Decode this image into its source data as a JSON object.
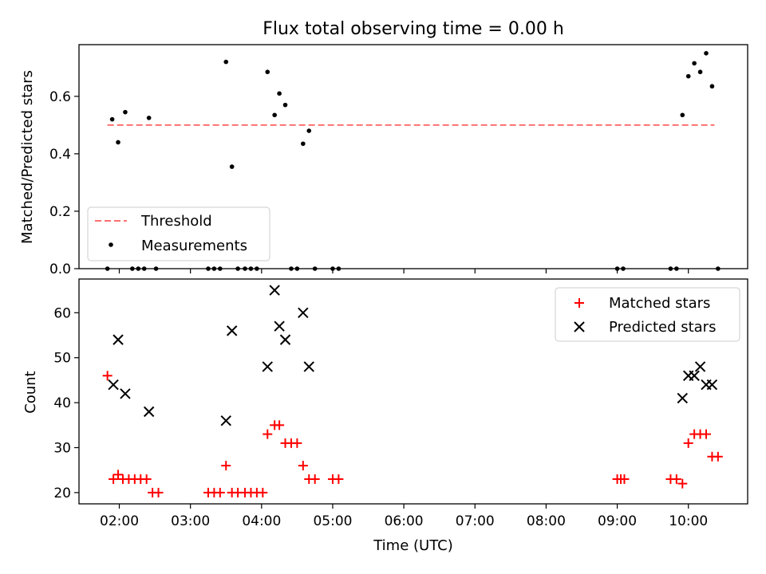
{
  "figure": {
    "title": "Flux total observing time = 0.00 h"
  },
  "chart_data": [
    {
      "type": "scatter",
      "panel": "top",
      "ylabel": "Matched/Predicted stars",
      "xlim": [
        "01:26",
        "10:50"
      ],
      "ylim": [
        0,
        0.78
      ],
      "yticks": [
        0.0,
        0.2,
        0.4,
        0.6
      ],
      "ytick_labels": [
        "0.0",
        "0.2",
        "0.4",
        "0.6"
      ],
      "legend_position": "lower-left",
      "threshold": {
        "name": "Threshold",
        "value": 0.5,
        "x_range": [
          "01:50",
          "10:22"
        ],
        "color": "#ff7070",
        "style": "dashed"
      },
      "series": [
        {
          "name": "Measurements",
          "color": "#000000",
          "points": [
            [
              "01:50",
              0.0
            ],
            [
              "01:54",
              0.52
            ],
            [
              "01:59",
              0.44
            ],
            [
              "02:05",
              0.545
            ],
            [
              "02:11",
              0.0
            ],
            [
              "02:16",
              0.0
            ],
            [
              "02:21",
              0.0
            ],
            [
              "02:25",
              0.525
            ],
            [
              "02:31",
              0.0
            ],
            [
              "03:15",
              0.0
            ],
            [
              "03:20",
              0.0
            ],
            [
              "03:25",
              0.0
            ],
            [
              "03:30",
              0.72
            ],
            [
              "03:35",
              0.355
            ],
            [
              "03:40",
              0.0
            ],
            [
              "03:46",
              0.0
            ],
            [
              "03:51",
              0.0
            ],
            [
              "03:56",
              0.0
            ],
            [
              "04:05",
              0.685
            ],
            [
              "04:11",
              0.535
            ],
            [
              "04:15",
              0.61
            ],
            [
              "04:20",
              0.57
            ],
            [
              "04:25",
              0.0
            ],
            [
              "04:30",
              0.0
            ],
            [
              "04:35",
              0.435
            ],
            [
              "04:40",
              0.48
            ],
            [
              "04:45",
              0.0
            ],
            [
              "05:00",
              0.0
            ],
            [
              "05:05",
              0.0
            ],
            [
              "09:00",
              0.0
            ],
            [
              "09:05",
              0.0
            ],
            [
              "09:45",
              0.0
            ],
            [
              "09:50",
              0.0
            ],
            [
              "09:55",
              0.535
            ],
            [
              "10:00",
              0.67
            ],
            [
              "10:05",
              0.715
            ],
            [
              "10:10",
              0.685
            ],
            [
              "10:15",
              0.75
            ],
            [
              "10:20",
              0.635
            ],
            [
              "10:25",
              0.0
            ]
          ]
        }
      ]
    },
    {
      "type": "scatter",
      "panel": "bottom",
      "xlabel": "Time (UTC)",
      "ylabel": "Count",
      "xlim": [
        "01:26",
        "10:50"
      ],
      "ylim": [
        17.5,
        67.5
      ],
      "xticks": [
        "02:00",
        "03:00",
        "04:00",
        "05:00",
        "06:00",
        "07:00",
        "08:00",
        "09:00",
        "10:00"
      ],
      "yticks": [
        20,
        30,
        40,
        50,
        60
      ],
      "ytick_labels": [
        "20",
        "30",
        "40",
        "50",
        "60"
      ],
      "legend_position": "upper-right",
      "series": [
        {
          "name": "Matched stars",
          "marker": "+",
          "color": "#ff0000",
          "points": [
            [
              "01:50",
              46
            ],
            [
              "01:55",
              23
            ],
            [
              "01:59",
              24
            ],
            [
              "02:03",
              23
            ],
            [
              "02:08",
              23
            ],
            [
              "02:13",
              23
            ],
            [
              "02:18",
              23
            ],
            [
              "02:23",
              23
            ],
            [
              "02:28",
              20
            ],
            [
              "02:33",
              20
            ],
            [
              "03:15",
              20
            ],
            [
              "03:20",
              20
            ],
            [
              "03:25",
              20
            ],
            [
              "03:30",
              26
            ],
            [
              "03:35",
              20
            ],
            [
              "03:40",
              20
            ],
            [
              "03:46",
              20
            ],
            [
              "03:51",
              20
            ],
            [
              "03:56",
              20
            ],
            [
              "04:01",
              20
            ],
            [
              "04:05",
              33
            ],
            [
              "04:11",
              35
            ],
            [
              "04:15",
              35
            ],
            [
              "04:20",
              31
            ],
            [
              "04:25",
              31
            ],
            [
              "04:30",
              31
            ],
            [
              "04:35",
              26
            ],
            [
              "04:40",
              23
            ],
            [
              "04:45",
              23
            ],
            [
              "05:00",
              23
            ],
            [
              "05:05",
              23
            ],
            [
              "09:00",
              23
            ],
            [
              "09:03",
              23
            ],
            [
              "09:06",
              23
            ],
            [
              "09:45",
              23
            ],
            [
              "09:50",
              23
            ],
            [
              "09:55",
              22
            ],
            [
              "10:00",
              31
            ],
            [
              "10:05",
              33
            ],
            [
              "10:10",
              33
            ],
            [
              "10:15",
              33
            ],
            [
              "10:20",
              28
            ],
            [
              "10:25",
              28
            ]
          ]
        },
        {
          "name": "Predicted stars",
          "marker": "x",
          "color": "#000000",
          "points": [
            [
              "01:55",
              44
            ],
            [
              "01:59",
              54
            ],
            [
              "02:05",
              42
            ],
            [
              "02:25",
              38
            ],
            [
              "03:30",
              36
            ],
            [
              "03:35",
              56
            ],
            [
              "04:05",
              48
            ],
            [
              "04:11",
              65
            ],
            [
              "04:15",
              57
            ],
            [
              "04:20",
              54
            ],
            [
              "04:35",
              60
            ],
            [
              "04:40",
              48
            ],
            [
              "09:55",
              41
            ],
            [
              "10:00",
              46
            ],
            [
              "10:05",
              46
            ],
            [
              "10:10",
              48
            ],
            [
              "10:15",
              44
            ],
            [
              "10:20",
              44
            ]
          ]
        }
      ]
    }
  ]
}
